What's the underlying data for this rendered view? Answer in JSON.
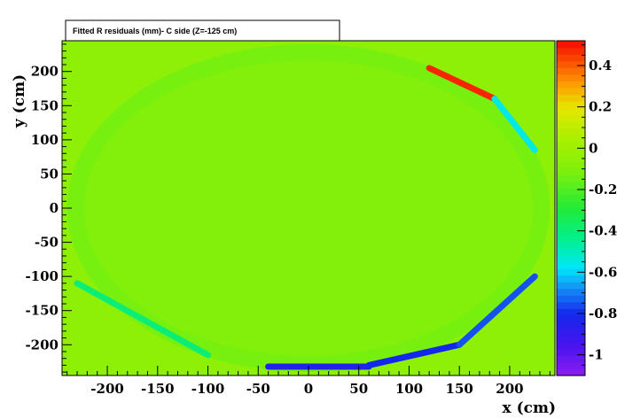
{
  "chart_data": {
    "type": "heatmap",
    "title": "Fitted R residuals (mm)- C side (Z=-125 cm)",
    "xlabel": "x (cm)",
    "ylabel": "y (cm)",
    "xlim": [
      -245,
      245
    ],
    "ylim": [
      -245,
      245
    ],
    "x_ticks": [
      -200,
      -150,
      -100,
      -50,
      0,
      50,
      100,
      150,
      200
    ],
    "x_tick_labels": [
      "-200",
      "-150",
      "-100",
      "-50",
      "0",
      "50",
      "100",
      "150",
      "200"
    ],
    "y_ticks": [
      -200,
      -150,
      -100,
      -50,
      0,
      50,
      100,
      150,
      200
    ],
    "y_tick_labels": [
      "-200",
      "-150",
      "-100",
      "-50",
      "0",
      "50",
      "100",
      "150",
      "200"
    ],
    "z_range": [
      -1.1,
      0.52
    ],
    "z_ticks": [
      -1,
      -0.8,
      -0.6,
      -0.4,
      -0.2,
      0,
      0.2,
      0.4
    ],
    "z_tick_labels": [
      "-1",
      "-0.8",
      "-0.6",
      "-0.4",
      "-0.2",
      "0",
      "0.2",
      "0.4"
    ],
    "background_value": -0.05,
    "ellipse": {
      "center": [
        0,
        0
      ],
      "rx": 240,
      "ry": 240,
      "interior_value": -0.12
    },
    "rim_features": [
      {
        "from": [
          120,
          205
        ],
        "to": [
          185,
          160
        ],
        "peak_value": 0.48
      },
      {
        "from": [
          185,
          160
        ],
        "to": [
          225,
          85
        ],
        "peak_value": -0.55
      },
      {
        "from": [
          -40,
          -232
        ],
        "to": [
          60,
          -232
        ],
        "peak_value": -0.85
      },
      {
        "from": [
          60,
          -230
        ],
        "to": [
          150,
          -200
        ],
        "peak_value": -0.8
      },
      {
        "from": [
          150,
          -200
        ],
        "to": [
          225,
          -100
        ],
        "peak_value": -0.75
      },
      {
        "from": [
          -230,
          -110
        ],
        "to": [
          -100,
          -215
        ],
        "peak_value": -0.4
      }
    ],
    "grid": false
  }
}
